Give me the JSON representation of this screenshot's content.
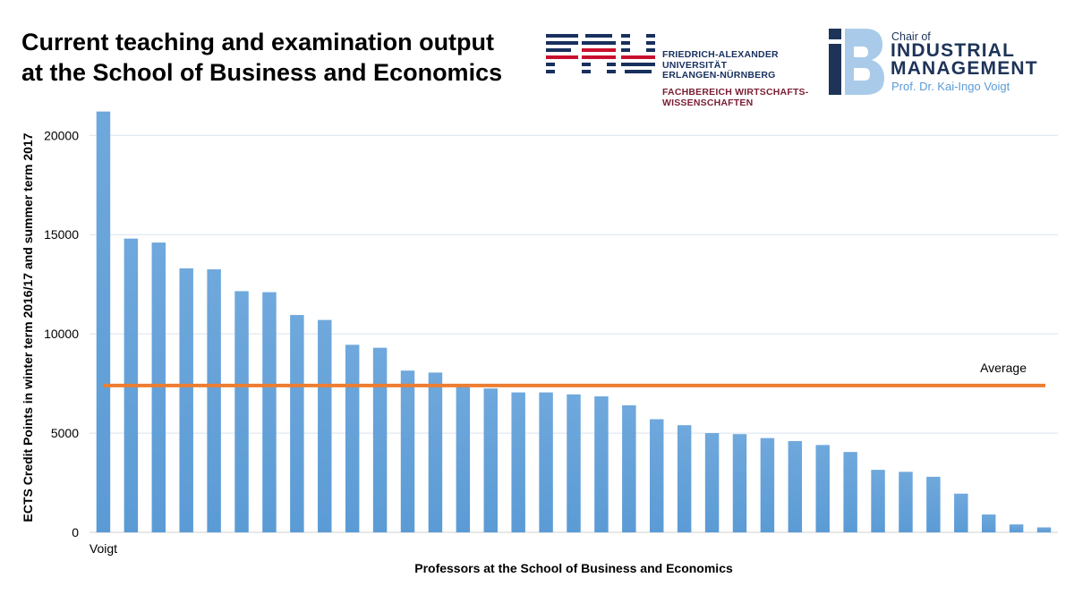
{
  "header": {
    "title_line1": "Current teaching and examination output",
    "title_line2": "at the School of Business and Economics"
  },
  "logo_fau": {
    "mark_text": "FAU",
    "line1": "FRIEDRICH-ALEXANDER",
    "line2": "UNIVERSITÄT",
    "line3": "ERLANGEN-NÜRNBERG",
    "sub1": "FACHBEREICH WIRTSCHAFTS-",
    "sub2": "WISSENSCHAFTEN",
    "colors": {
      "navy": "#18305e",
      "red": "#7a1e34"
    }
  },
  "logo_ib": {
    "mark_text": "iB",
    "chair": "Chair of",
    "line1": "INDUSTRIAL",
    "line2": "MANAGEMENT",
    "professor": "Prof. Dr. Kai-Ingo Voigt",
    "colors": {
      "navy": "#1e3358",
      "light_blue": "#a9cbe9",
      "accent": "#5b9bd5"
    }
  },
  "chart_data": {
    "type": "bar",
    "title": "",
    "xlabel": "Professors at the School of Business and Economics",
    "ylabel": "ECTS Credit Points in winter term 2016/17 and summer term 2017",
    "ylim": [
      0,
      21500
    ],
    "yticks": [
      0,
      5000,
      10000,
      15000,
      20000
    ],
    "grid": true,
    "categories": [
      "Voigt",
      "",
      "",
      "",
      "",
      "",
      "",
      "",
      "",
      "",
      "",
      "",
      "",
      "",
      "",
      "",
      "",
      "",
      "",
      "",
      "",
      "",
      "",
      "",
      "",
      "",
      "",
      "",
      "",
      "",
      "",
      "",
      "",
      "",
      ""
    ],
    "values": [
      21200,
      14800,
      14600,
      13300,
      13250,
      12150,
      12100,
      10950,
      10700,
      9450,
      9300,
      8150,
      8050,
      7350,
      7250,
      7050,
      7050,
      6950,
      6850,
      6400,
      5700,
      5400,
      5000,
      4950,
      4750,
      4600,
      4400,
      4050,
      3150,
      3050,
      2800,
      1950,
      900,
      400,
      250
    ],
    "average": {
      "label": "Average",
      "value": 7400
    },
    "colors": {
      "bar": "#5b9bd5",
      "average_line": "#ed7d31",
      "grid": "#d9e3ef"
    }
  }
}
